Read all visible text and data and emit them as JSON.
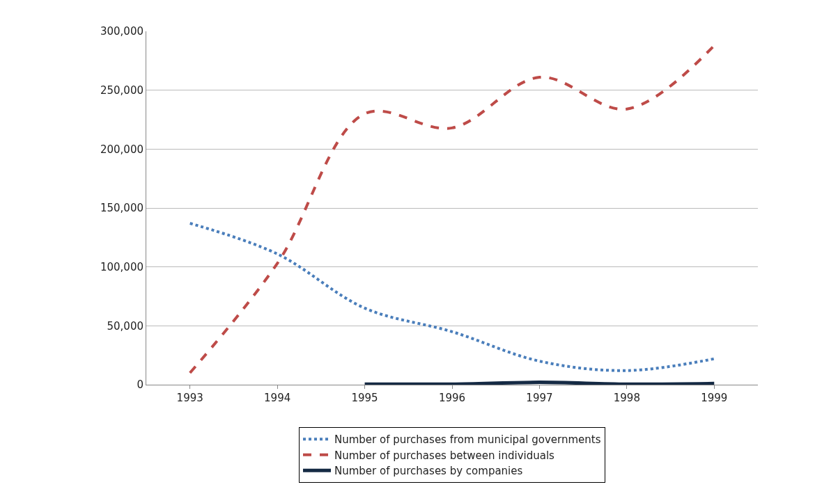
{
  "chart_data": {
    "type": "line",
    "categories": [
      "1993",
      "1994",
      "1995",
      "1996",
      "1997",
      "1998",
      "1999"
    ],
    "series": [
      {
        "name": "Number of purchases from municipal governments",
        "color": "#4a7ebb",
        "line_style": "dotted",
        "values": [
          137000,
          111000,
          65000,
          45000,
          20000,
          12000,
          22000
        ]
      },
      {
        "name": "Number of purchases between individuals",
        "color": "#be4b48",
        "line_style": "dashed",
        "values": [
          10000,
          103000,
          230000,
          218000,
          261000,
          234000,
          288000
        ]
      },
      {
        "name": "Number of purchases by companies",
        "color": "#152a44",
        "line_style": "solid",
        "values": [
          null,
          null,
          500,
          500,
          2000,
          500,
          1000
        ]
      }
    ],
    "ylim": [
      0,
      300000
    ],
    "yticks": [
      {
        "value": 0,
        "label": "0"
      },
      {
        "value": 50000,
        "label": "50,000"
      },
      {
        "value": 100000,
        "label": "100,000"
      },
      {
        "value": 150000,
        "label": "150,000"
      },
      {
        "value": 200000,
        "label": "200,000"
      },
      {
        "value": 250000,
        "label": "250,000"
      },
      {
        "value": 300000,
        "label": "300,000"
      }
    ],
    "grid": "y",
    "legend": "bottom",
    "marker": "none"
  }
}
